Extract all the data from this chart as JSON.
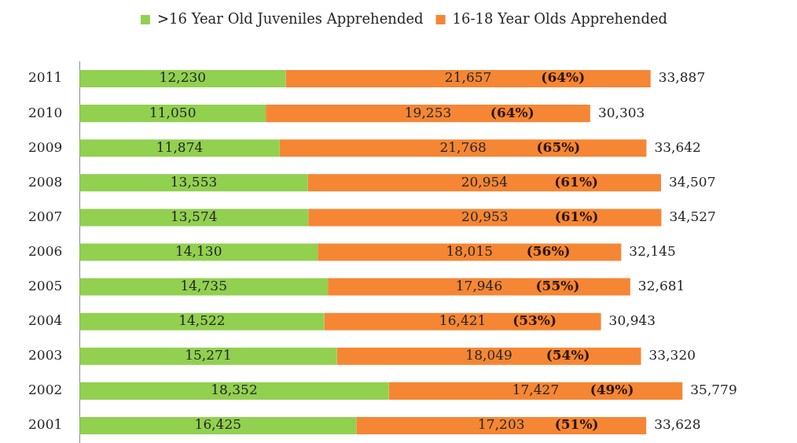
{
  "chart_data": {
    "type": "bar",
    "orientation": "horizontal",
    "stacked": true,
    "categories": [
      "2011",
      "2010",
      "2009",
      "2008",
      "2007",
      "2006",
      "2005",
      "2004",
      "2003",
      "2002",
      "2001"
    ],
    "series": [
      {
        "name": ">16 Year Old Juveniles Apprehended",
        "color": "#92d050",
        "values": [
          12230,
          11050,
          11874,
          13553,
          13574,
          14130,
          14735,
          14522,
          15271,
          18352,
          16425
        ],
        "value_labels": [
          "12,230",
          "11,050",
          "11,874",
          "13,553",
          "13,574",
          "14,130",
          "14,735",
          "14,522",
          "15,271",
          "18,352",
          "16,425"
        ]
      },
      {
        "name": "16-18 Year Olds Apprehended",
        "color": "#f58634",
        "values": [
          21657,
          19253,
          21768,
          20954,
          20953,
          18015,
          17946,
          16421,
          18049,
          17427,
          17203
        ],
        "value_labels": [
          "21,657",
          "19,253",
          "21,768",
          "20,954",
          "20,953",
          "18,015",
          "17,946",
          "16,421",
          "18,049",
          "17,427",
          "17,203"
        ]
      }
    ],
    "totals": [
      "33,887",
      "30,303",
      "33,642",
      "34,507",
      "34,527",
      "32,145",
      "32,681",
      "30,943",
      "33,320",
      "35,779",
      "33,628"
    ],
    "annotations": [
      "(64%)",
      "(64%)",
      "(65%)",
      "(61%)",
      "(61%)",
      "(56%)",
      "(55%)",
      "(53%)",
      "(54%)",
      "(49%)",
      "(51%)"
    ],
    "legend": "top",
    "tick_labels": "y"
  }
}
